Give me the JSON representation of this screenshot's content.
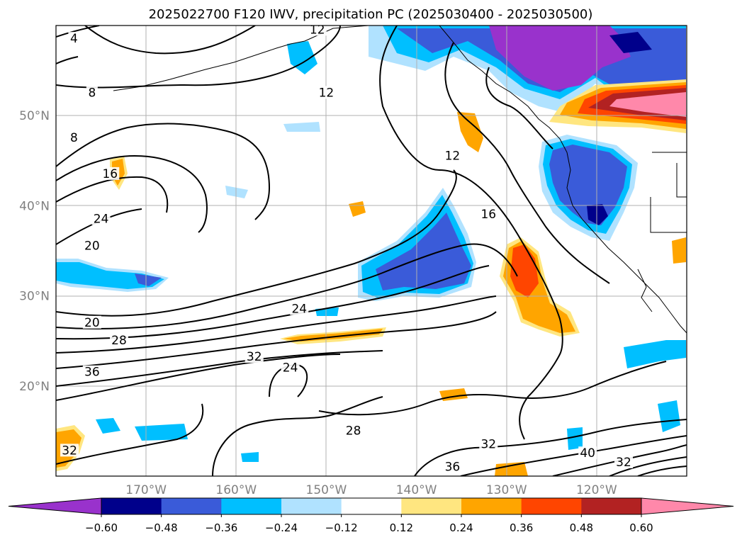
{
  "chart_data": {
    "type": "contour_map",
    "title": "2025022700 F120 IWV, precipitation PC (2025030400 - 2025030500)",
    "lon_range": [
      -180,
      -110
    ],
    "lat_range": [
      10,
      60
    ],
    "xticks": [
      {
        "lon": -170,
        "label": "170°W"
      },
      {
        "lon": -160,
        "label": "160°W"
      },
      {
        "lon": -150,
        "label": "150°W"
      },
      {
        "lon": -140,
        "label": "140°W"
      },
      {
        "lon": -130,
        "label": "130°W"
      },
      {
        "lon": -120,
        "label": "120°W"
      }
    ],
    "yticks": [
      {
        "lat": 20,
        "label": "20°N"
      },
      {
        "lat": 30,
        "label": "30°N"
      },
      {
        "lat": 40,
        "label": "40°N"
      },
      {
        "lat": 50,
        "label": "50°N"
      }
    ],
    "grid": true,
    "colorbar": {
      "orientation": "horizontal",
      "extend": "both",
      "ticks": [
        "−0.60",
        "−0.48",
        "−0.36",
        "−0.24",
        "−0.12",
        "0.12",
        "0.24",
        "0.36",
        "0.48",
        "0.60"
      ],
      "colors": [
        "#9932cc",
        "#00008b",
        "#3a5bd9",
        "#00bfff",
        "#b0e2ff",
        "#ffffff",
        "#ffe680",
        "#ffa500",
        "#ff4500",
        "#b22222",
        "#ff88aa"
      ]
    },
    "contour_labels": [
      {
        "text": "4",
        "lon": -178,
        "lat": 58.5
      },
      {
        "text": "12",
        "lon": -151,
        "lat": 59.5
      },
      {
        "text": "8",
        "lon": -176,
        "lat": 52.5
      },
      {
        "text": "12",
        "lon": -150,
        "lat": 52.5
      },
      {
        "text": "8",
        "lon": -178,
        "lat": 47.5
      },
      {
        "text": "16",
        "lon": -174,
        "lat": 43.5
      },
      {
        "text": "12",
        "lon": -136,
        "lat": 45.5
      },
      {
        "text": "24",
        "lon": -175,
        "lat": 38.5
      },
      {
        "text": "16",
        "lon": -132,
        "lat": 39
      },
      {
        "text": "20",
        "lon": -176,
        "lat": 35.5
      },
      {
        "text": "24",
        "lon": -153,
        "lat": 28.5
      },
      {
        "text": "20",
        "lon": -176,
        "lat": 27
      },
      {
        "text": "28",
        "lon": -173,
        "lat": 25
      },
      {
        "text": "32",
        "lon": -158,
        "lat": 23.2
      },
      {
        "text": "24",
        "lon": -154,
        "lat": 22
      },
      {
        "text": "36",
        "lon": -176,
        "lat": 21.5
      },
      {
        "text": "28",
        "lon": -147,
        "lat": 15
      },
      {
        "text": "32",
        "lon": -178.5,
        "lat": 12.8
      },
      {
        "text": "32",
        "lon": -132,
        "lat": 13.5
      },
      {
        "text": "36",
        "lon": -136,
        "lat": 11
      },
      {
        "text": "40",
        "lon": -121,
        "lat": 12.5
      },
      {
        "text": "32",
        "lon": -117,
        "lat": 11.5
      }
    ],
    "anomaly_regions": [
      {
        "sign": "negative",
        "max_level": -0.6,
        "lon": [
          -130,
          -122
        ],
        "lat": [
          52,
          60
        ]
      },
      {
        "sign": "negative",
        "max_level": -0.48,
        "lon": [
          -127,
          -118
        ],
        "lat": [
          36,
          45
        ]
      },
      {
        "sign": "negative",
        "max_level": -0.36,
        "lon": [
          -147,
          -137
        ],
        "lat": [
          31,
          37
        ]
      },
      {
        "sign": "negative",
        "max_level": -0.24,
        "lon": [
          -180,
          -168
        ],
        "lat": [
          30,
          34
        ]
      },
      {
        "sign": "positive",
        "max_level": 0.6,
        "lon": [
          -124,
          -110
        ],
        "lat": [
          49,
          55
        ]
      },
      {
        "sign": "positive",
        "max_level": 0.36,
        "lon": [
          -133,
          -125
        ],
        "lat": [
          25,
          36
        ]
      },
      {
        "sign": "positive",
        "max_level": 0.24,
        "lon": [
          -150,
          -144
        ],
        "lat": [
          24.5,
          26
        ]
      },
      {
        "sign": "positive",
        "max_level": 0.24,
        "lon": [
          -175,
          -173
        ],
        "lat": [
          42,
          44.5
        ]
      }
    ]
  }
}
